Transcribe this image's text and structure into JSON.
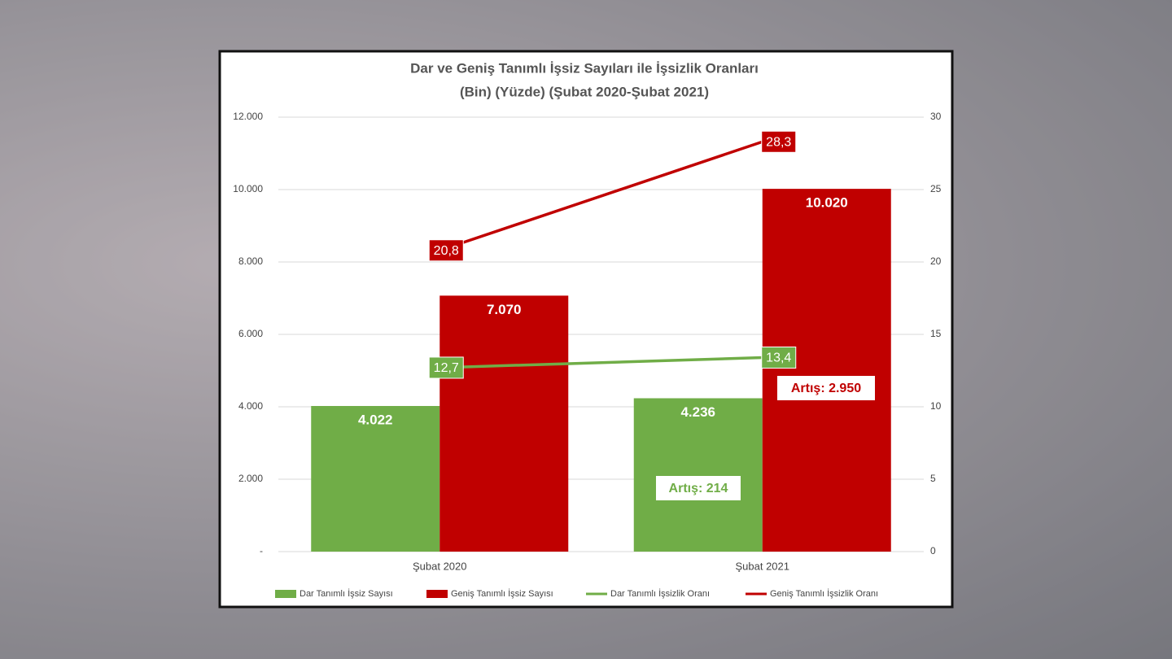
{
  "chart_data": {
    "type": "bar",
    "title": [
      "Dar ve Geniş Tanımlı İşsiz Sayıları ile İşsizlik Oranları",
      "(Bin) (Yüzde) (Şubat 2020-Şubat 2021)"
    ],
    "categories": [
      "Şubat 2020",
      "Şubat 2021"
    ],
    "series": [
      {
        "name": "Dar Tanımlı İşsiz Sayısı",
        "type": "bar",
        "color": "#70ad47",
        "values": [
          4022,
          4236
        ],
        "value_labels": [
          "4.022",
          "4.236"
        ]
      },
      {
        "name": "Geniş Tanımlı İşsiz Sayısı",
        "type": "bar",
        "color": "#c00000",
        "values": [
          7070,
          10020
        ],
        "value_labels": [
          "7.070",
          "10.020"
        ]
      },
      {
        "name": "Dar Tanımlı İşsizlik Oranı",
        "type": "line",
        "axis": "y2",
        "color": "#70ad47",
        "values": [
          12.7,
          13.4
        ],
        "value_labels": [
          "12,7",
          "13,4"
        ]
      },
      {
        "name": "Geniş Tanımlı İşsizlik Oranı",
        "type": "line",
        "axis": "y2",
        "color": "#c00000",
        "values": [
          20.8,
          28.3
        ],
        "value_labels": [
          "20,8",
          "28,3"
        ]
      }
    ],
    "ylim": [
      0,
      12000
    ],
    "yticks": [
      {
        "value": 0,
        "label": "-"
      },
      {
        "value": 2000,
        "label": "2.000"
      },
      {
        "value": 4000,
        "label": "4.000"
      },
      {
        "value": 6000,
        "label": "6.000"
      },
      {
        "value": 8000,
        "label": "8.000"
      },
      {
        "value": 10000,
        "label": "10.000"
      },
      {
        "value": 12000,
        "label": "12.000"
      }
    ],
    "y2lim": [
      0,
      30
    ],
    "y2ticks": [
      0,
      5,
      10,
      15,
      20,
      25,
      30
    ],
    "grid": true,
    "legend": "bottom",
    "annotations": [
      {
        "text": "Artış: 214",
        "color": "#70ad47"
      },
      {
        "text": "Artış: 2.950",
        "color": "#c00000"
      }
    ]
  }
}
